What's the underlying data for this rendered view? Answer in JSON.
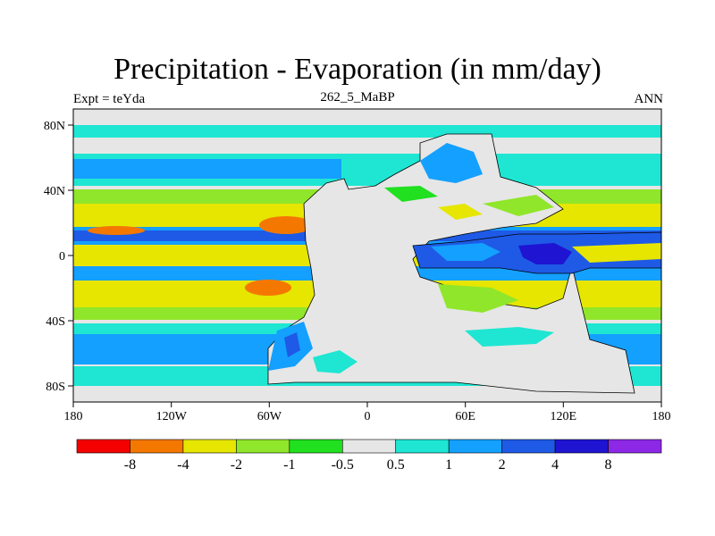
{
  "title": "Precipitation - Evaporation (in mm/day)",
  "subtitle_left": "Expt = teYda",
  "subtitle_center": "262_5_MaBP",
  "subtitle_right": "ANN",
  "map": {
    "lon_range": [
      -180,
      180
    ],
    "lat_range": [
      -90,
      90
    ],
    "lon_ticks": [
      "180",
      "120W",
      "60W",
      "0",
      "60E",
      "120E",
      "180"
    ],
    "lat_ticks": [
      "80N",
      "40N",
      "0",
      "40S",
      "80S"
    ],
    "palette": {
      "lt_neg8": "#f40000",
      "neg8_neg4": "#f47800",
      "neg4_neg2": "#e6e600",
      "neg2_neg1": "#90e62a",
      "neg1_neg05": "#20e020",
      "neg05_05": "#e6e6e6",
      "p05_1": "#1ee6d2",
      "p1_2": "#14a0ff",
      "p2_4": "#1e5ae6",
      "p4_8": "#1e14d2",
      "gt8": "#8c28e6"
    }
  },
  "colorbar": {
    "labels": [
      "-8",
      "-4",
      "-2",
      "-1",
      "-0.5",
      "0.5",
      "1",
      "2",
      "4",
      "8"
    ],
    "colors": [
      "#f40000",
      "#f47800",
      "#e6e600",
      "#90e62a",
      "#20e020",
      "#e6e6e6",
      "#1ee6d2",
      "#14a0ff",
      "#1e5ae6",
      "#1e14d2",
      "#8c28e6"
    ]
  }
}
